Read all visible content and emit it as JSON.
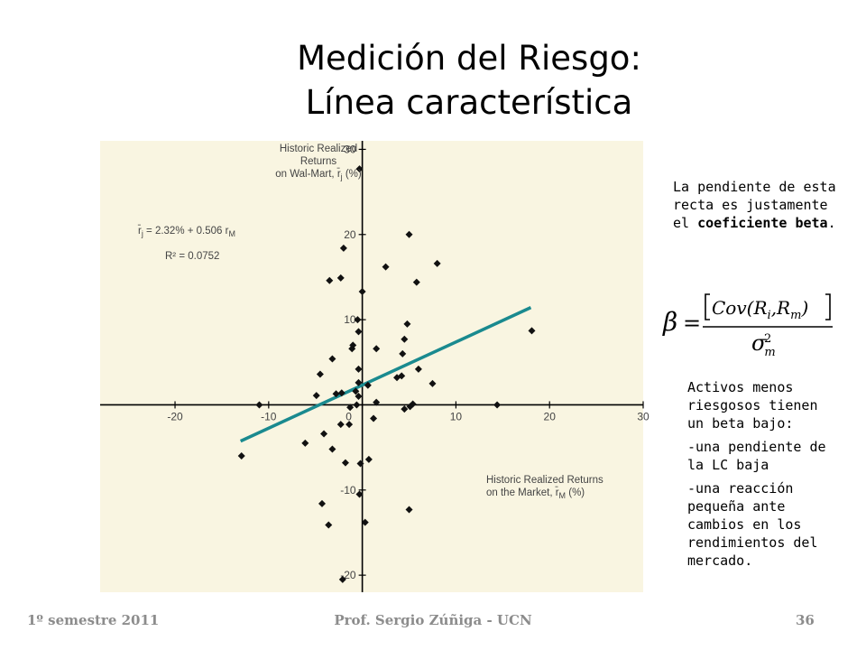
{
  "slide": {
    "title_line1": "Medición del Riesgo:",
    "title_line2": "Línea característica",
    "note1": {
      "text": "La pendiente de esta recta es justamente el ",
      "bold": "coeficiente beta",
      "end": "."
    },
    "note2": {
      "intro": "Activos menos riesgosos tienen un beta bajo:",
      "item1": "-una pendiente de la LC baja",
      "item2": "-una reacción pequeña ante cambios en los rendimientos del mercado."
    },
    "footer": {
      "left": "1º semestre 2011",
      "center": "Prof. Sergio Zúñiga - UCN",
      "page": "36"
    }
  },
  "chart_data": {
    "type": "scatter",
    "xlim": [
      -28,
      30
    ],
    "ylim": [
      -22,
      31
    ],
    "x_ticks": [
      -20,
      -10,
      0,
      10,
      20,
      30
    ],
    "x_tick_labels": [
      "-20",
      "-10",
      "0",
      "10",
      "20",
      "30"
    ],
    "y_ticks": [
      30,
      20,
      10,
      -10,
      -20
    ],
    "y_tick_labels": [
      "30",
      "20",
      "10",
      "-10",
      "-20"
    ],
    "ylabel_line1": "Historic Realized",
    "ylabel_line2": "Returns",
    "ylabel_line3": "on Wal-Mart, r̄",
    "ylabel_sub": "j",
    "ylabel_unit": " (%)",
    "xlabel_line1": "Historic Realized Returns",
    "xlabel_line2": "on the Market, r̄",
    "xlabel_sub": "M",
    "xlabel_unit": " (%)",
    "equation_lhs": "r̄",
    "equation_lhs_sub": "j",
    "equation_rhs": " = 2.32% + 0.506 r",
    "equation_rhs_sub": "M",
    "r2_text": "R² = 0.0752",
    "grid": false,
    "regression": {
      "intercept": 2.32,
      "slope": 0.506,
      "x_range": [
        -13,
        18
      ],
      "color": "#1a8a8f"
    },
    "point_color": "#111111",
    "background": "#f9f5e1",
    "points": [
      [
        -0.3,
        27.7
      ],
      [
        5,
        20
      ],
      [
        -2,
        18.4
      ],
      [
        8,
        16.6
      ],
      [
        2.5,
        16.2
      ],
      [
        -2.3,
        14.9
      ],
      [
        -3.5,
        14.6
      ],
      [
        5.8,
        14.4
      ],
      [
        0,
        13.3
      ],
      [
        -0.5,
        10
      ],
      [
        4.8,
        9.5
      ],
      [
        -0.4,
        8.6
      ],
      [
        4.5,
        7.7
      ],
      [
        -1,
        7
      ],
      [
        -1.1,
        6.6
      ],
      [
        1.5,
        6.6
      ],
      [
        4.3,
        6
      ],
      [
        -3.2,
        5.4
      ],
      [
        -0.4,
        4.2
      ],
      [
        6,
        4.2
      ],
      [
        4.2,
        3.4
      ],
      [
        3.7,
        3.2
      ],
      [
        -4.5,
        3.6
      ],
      [
        -0.4,
        2.6
      ],
      [
        0.6,
        2.3
      ],
      [
        7.5,
        2.5
      ],
      [
        -0.7,
        1.6
      ],
      [
        -2.2,
        1.4
      ],
      [
        -2.8,
        1.3
      ],
      [
        -4.9,
        1.1
      ],
      [
        -0.4,
        1
      ],
      [
        1.5,
        0.3
      ],
      [
        -0.6,
        0
      ],
      [
        5.1,
        -0.2
      ],
      [
        5.4,
        0.1
      ],
      [
        -11,
        0
      ],
      [
        14.4,
        0
      ],
      [
        -1.3,
        -0.3
      ],
      [
        4.5,
        -0.5
      ],
      [
        1.2,
        -1.6
      ],
      [
        -2.3,
        -2.3
      ],
      [
        -1.4,
        -2.3
      ],
      [
        -4.1,
        -3.4
      ],
      [
        -6.1,
        -4.5
      ],
      [
        -3.2,
        -5.2
      ],
      [
        0.7,
        -6.4
      ],
      [
        -1.8,
        -6.8
      ],
      [
        -12.9,
        -6
      ],
      [
        -0.2,
        -6.9
      ],
      [
        -0.3,
        -10.5
      ],
      [
        -4.3,
        -11.6
      ],
      [
        5,
        -12.3
      ],
      [
        -3.6,
        -14.1
      ],
      [
        0.3,
        -13.8
      ],
      [
        -2.1,
        -20.5
      ],
      [
        18.1,
        8.7
      ]
    ]
  },
  "formula": {
    "beta": "β",
    "equals": "=",
    "numerator": "Cov(R",
    "numerator_sub_i": "i",
    "numerator_mid": ",R",
    "numerator_sub_m": "m",
    "numerator_end": ")",
    "denominator": "σ",
    "denominator_sub": "m",
    "denominator_sup": "2"
  }
}
